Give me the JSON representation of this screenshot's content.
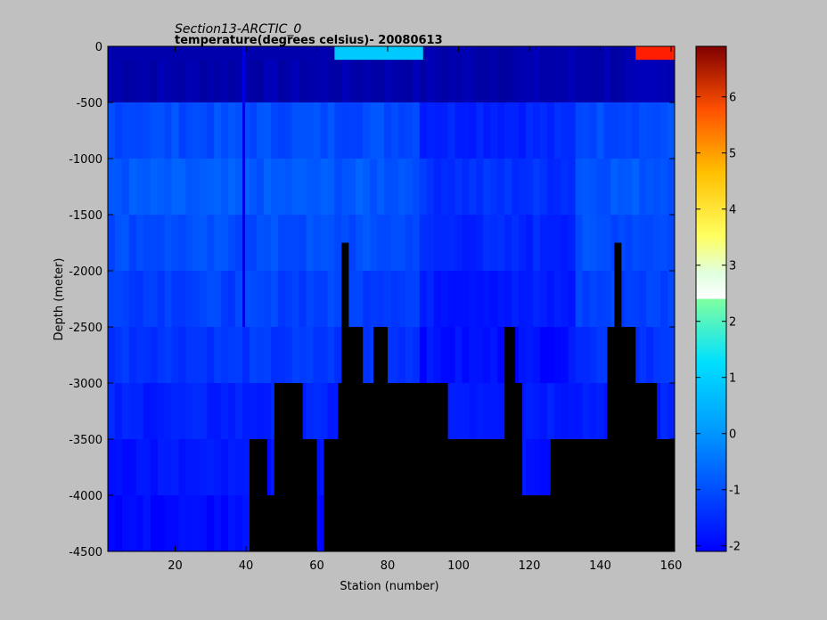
{
  "chart_data": {
    "type": "heatmap",
    "title": "Section13-ARCTIC_0",
    "subtitle": "temperature(degrees  celsius)- 20080613",
    "xlabel": "Station (number)",
    "ylabel": "Depth (meter)",
    "xlim": [
      1,
      161
    ],
    "ylim": [
      -4500,
      0
    ],
    "xticks": [
      "20",
      "40",
      "60",
      "80",
      "100",
      "120",
      "140",
      "160"
    ],
    "yticks": [
      "0",
      "-500",
      "-1000",
      "-1500",
      "-2000",
      "-2500",
      "-3000",
      "-3500",
      "-4000",
      "-4500"
    ],
    "colorbar": {
      "range": [
        -2.1,
        6.9
      ],
      "ticks": [
        "-2",
        "-1",
        "0",
        "1",
        "2",
        "3",
        "4",
        "5",
        "6"
      ],
      "colormap": "jet"
    },
    "depth_levels": [
      -250,
      -750,
      -1250,
      -1750,
      -2250,
      -2750,
      -3250,
      -3750,
      -4250
    ],
    "temperature_profile": [
      -1.7,
      -0.3,
      -0.2,
      -0.3,
      -0.4,
      -0.5,
      -0.7,
      -0.8,
      -0.9
    ],
    "surface_features": [
      {
        "station_range": [
          1,
          60
        ],
        "temperature": -1.7
      },
      {
        "station_range": [
          65,
          90
        ],
        "temperature": 0.8
      },
      {
        "station_range": [
          150,
          161
        ],
        "temperature": 5.5
      }
    ],
    "bathymetry": [
      {
        "station": 41,
        "depth": -3500
      },
      {
        "station": 46,
        "depth": -4000
      },
      {
        "station": 48,
        "depth": -3000
      },
      {
        "station": 56,
        "depth": -3500
      },
      {
        "station": 60,
        "depth": -4500
      },
      {
        "station": 62,
        "depth": -3500
      },
      {
        "station": 66,
        "depth": -3000
      },
      {
        "station": 67,
        "depth": -1750
      },
      {
        "station": 69,
        "depth": -2500
      },
      {
        "station": 73,
        "depth": -3000
      },
      {
        "station": 76,
        "depth": -2500
      },
      {
        "station": 80,
        "depth": -3000
      },
      {
        "station": 97,
        "depth": -3500
      },
      {
        "station": 113,
        "depth": -2500
      },
      {
        "station": 116,
        "depth": -3000
      },
      {
        "station": 118,
        "depth": -4000
      },
      {
        "station": 126,
        "depth": -3500
      },
      {
        "station": 142,
        "depth": -2500
      },
      {
        "station": 144,
        "depth": -1750
      },
      {
        "station": 146,
        "depth": -2500
      },
      {
        "station": 150,
        "depth": -3000
      },
      {
        "station": 156,
        "depth": -3500
      },
      {
        "station": 161,
        "depth": -3500
      }
    ]
  }
}
